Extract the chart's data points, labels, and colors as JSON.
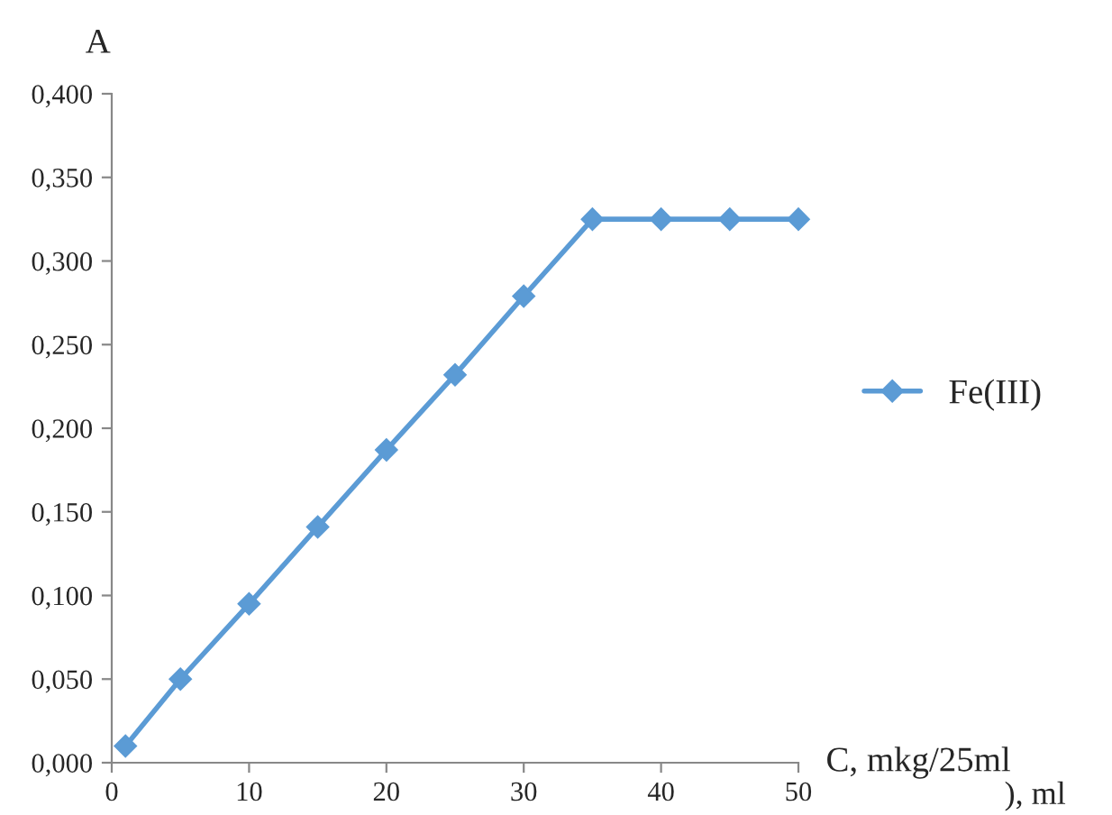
{
  "chart_data": {
    "type": "line",
    "ylabel": "A",
    "xlabel": "C, mkg/25ml",
    "annotations": [
      "), ml"
    ],
    "x": [
      1,
      5,
      10,
      15,
      20,
      25,
      30,
      35,
      40,
      45,
      50
    ],
    "series": [
      {
        "name": "Fe(III)",
        "color": "#5b9bd5",
        "values": [
          0.01,
          0.05,
          0.095,
          0.141,
          0.187,
          0.232,
          0.279,
          0.325,
          0.325,
          0.325,
          0.325
        ]
      }
    ],
    "xlim": [
      0,
      50
    ],
    "xticks": [
      0,
      10,
      20,
      30,
      40,
      50
    ],
    "ylim": [
      0,
      0.4
    ],
    "yticks": [
      {
        "value": 0,
        "label": "0,000"
      },
      {
        "value": 0.05,
        "label": "0,050"
      },
      {
        "value": 0.1,
        "label": "0,100"
      },
      {
        "value": 0.15,
        "label": "0,150"
      },
      {
        "value": 0.2,
        "label": "0,200"
      },
      {
        "value": 0.25,
        "label": "0,250"
      },
      {
        "value": 0.3,
        "label": "0,300"
      },
      {
        "value": 0.35,
        "label": "0,350"
      },
      {
        "value": 0.4,
        "label": "0,400"
      }
    ],
    "grid": false,
    "legend": "right",
    "marker": "diamond",
    "line_style": "solid"
  }
}
